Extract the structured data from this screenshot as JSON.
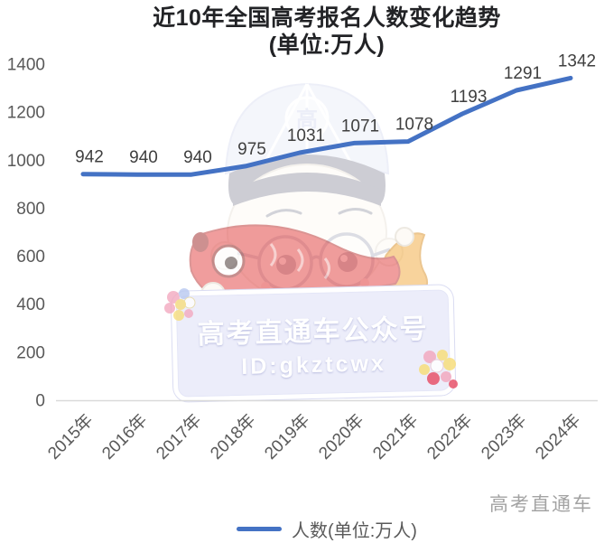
{
  "title": {
    "line1": "近10年全国高考报名人数变化趋势",
    "line2": "(单位:万人)"
  },
  "chart_data": {
    "type": "line",
    "title": "近10年全国高考报名人数变化趋势(单位:万人)",
    "categories": [
      "2015年",
      "2016年",
      "2017年",
      "2018年",
      "2019年",
      "2020年",
      "2021年",
      "2022年",
      "2023年",
      "2024年"
    ],
    "series": [
      {
        "name": "人数(单位:万人)",
        "values": [
          942,
          940,
          940,
          975,
          1031,
          1071,
          1078,
          1193,
          1291,
          1342
        ]
      }
    ],
    "xlabel": "",
    "ylabel": "",
    "ylim": [
      0,
      1400
    ],
    "yticks": [
      0,
      200,
      400,
      600,
      800,
      1000,
      1200,
      1400
    ],
    "grid": false,
    "data_labels": true,
    "legend_position": "bottom",
    "line_color": "#4472c4",
    "axis_color": "#d9d9d9",
    "tick_color": "#595959",
    "label_color": "#3f3f3f"
  },
  "legend": {
    "label": "人数(单位:万人)"
  },
  "watermark": {
    "banner_line1": "高考直通车公众号",
    "banner_line2": "ID:gkztcwx",
    "mascot": "boy-with-cap-glasses-holding-red-koi-fish",
    "cap_badge": "高"
  },
  "footer": {
    "brand": "高考直通车"
  }
}
